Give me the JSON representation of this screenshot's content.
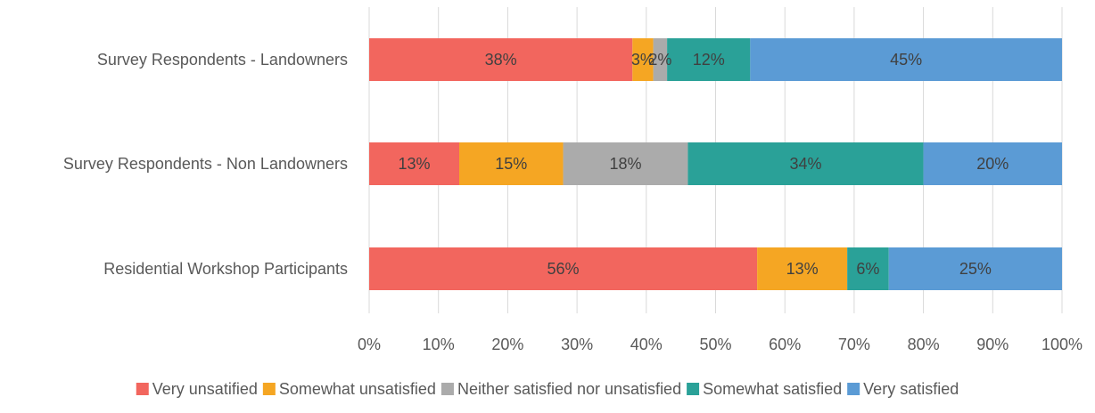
{
  "chart_data": {
    "type": "bar",
    "orientation": "horizontal",
    "stacked": "percent",
    "title": "",
    "xlabel": "",
    "ylabel": "",
    "xlim": [
      0,
      100
    ],
    "x_ticks": [
      "0%",
      "10%",
      "20%",
      "30%",
      "40%",
      "50%",
      "60%",
      "70%",
      "80%",
      "90%",
      "100%"
    ],
    "grid": "vertical",
    "legend_position": "bottom",
    "categories": [
      "Survey Respondents - Landowners",
      "Survey Respondents - Non Landowners",
      "Residential Workshop Participants"
    ],
    "series": [
      {
        "name": "Very unsatified",
        "color": "#f2665e",
        "values": [
          38,
          13,
          56
        ],
        "labels": [
          "38%",
          "13%",
          "56%"
        ]
      },
      {
        "name": "Somewhat unsatisfied",
        "color": "#f5a623",
        "values": [
          3,
          15,
          13
        ],
        "labels": [
          "3%",
          "15%",
          "13%"
        ]
      },
      {
        "name": "Neither satisfied nor unsatisfied",
        "color": "#ababab",
        "values": [
          2,
          18,
          0
        ],
        "labels": [
          "2%",
          "18%",
          ""
        ]
      },
      {
        "name": "Somewhat satisfied",
        "color": "#2aa198",
        "values": [
          12,
          34,
          6
        ],
        "labels": [
          "12%",
          "34%",
          "6%"
        ]
      },
      {
        "name": "Very satisfied",
        "color": "#5b9bd5",
        "values": [
          45,
          20,
          25
        ],
        "labels": [
          "45%",
          "20%",
          "25%"
        ]
      }
    ]
  }
}
